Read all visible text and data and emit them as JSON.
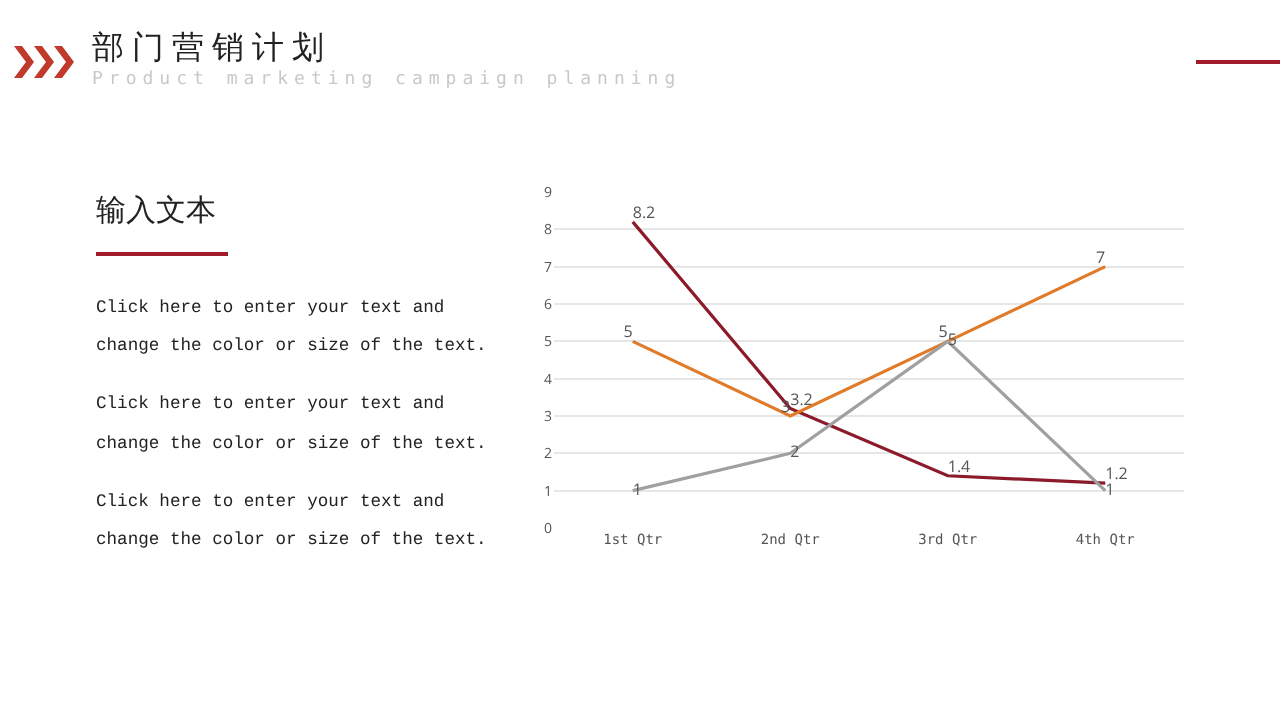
{
  "chart_data": {
    "type": "line",
    "title": "部门营销计划",
    "subtitle": "Product marketing campaign planning",
    "annotations": [
      "输入文本",
      "Click here to enter your text and",
      "change the color or size of the text.",
      "Click here to enter your text and",
      "change the color or size of the text.",
      "Click here to enter your text and",
      "change the color or size of the text."
    ],
    "categories": [
      "1st Qtr",
      "2nd Qtr",
      "3rd Qtr",
      "4th Qtr"
    ],
    "series": [
      {
        "color": "#8b1a2a",
        "values": [
          8.2,
          3.2,
          1.4,
          1.2
        ]
      },
      {
        "color": "#e07b2a",
        "values": [
          5,
          3,
          5,
          7
        ]
      },
      {
        "color": "#a0a0a0",
        "values": [
          1,
          2,
          5,
          1
        ]
      }
    ],
    "ylim": [
      0,
      9
    ],
    "yticks": [
      0,
      1,
      2,
      3,
      4,
      5,
      6,
      7,
      8,
      9
    ],
    "grid": "y",
    "data_labels": true,
    "marker": "none"
  }
}
